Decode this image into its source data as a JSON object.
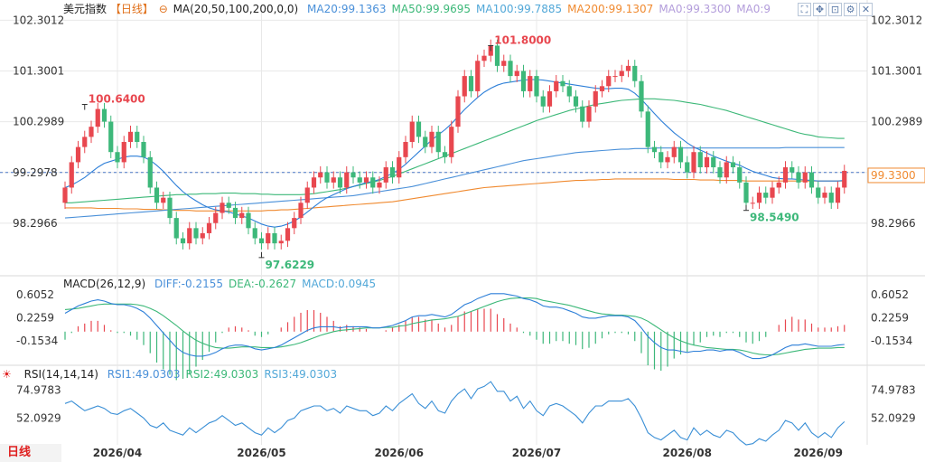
{
  "header": {
    "symbol": "美元指数",
    "period_label": "【日线】",
    "ma_label": "MA(20,50,100,200,0,0)",
    "ma_items": [
      {
        "text": "MA20:99.1363",
        "color": "#4a90d9"
      },
      {
        "text": "MA50:99.9695",
        "color": "#3cb878"
      },
      {
        "text": "MA100:99.7885",
        "color": "#52a8d8"
      },
      {
        "text": "MA200:99.1307",
        "color": "#f08a30"
      },
      {
        "text": "MA0:99.3300",
        "color": "#b39ddb"
      },
      {
        "text": "MA0:9",
        "color": "#b39ddb"
      }
    ],
    "toolbar_icons": [
      "fullscreen-icon",
      "move-icon",
      "zoom-icon",
      "settings-icon",
      "close-icon"
    ]
  },
  "macd_legend": {
    "label": "MACD(26,12,9)",
    "items": [
      {
        "text": "DIFF:-0.2155",
        "color": "#4a90d9"
      },
      {
        "text": "DEA:-0.2627",
        "color": "#3cb878"
      },
      {
        "text": "MACD:0.0945",
        "color": "#52a8d8"
      }
    ]
  },
  "rsi_legend": {
    "label": "RSI(14,14,14)",
    "items": [
      {
        "text": "RSI1:49.0303",
        "color": "#4a90d9"
      },
      {
        "text": "RSI2:49.0303",
        "color": "#3cb878"
      },
      {
        "text": "RSI3:49.0303",
        "color": "#52a8d8"
      }
    ]
  },
  "footer": {
    "period_tab": "日线"
  },
  "colors": {
    "up": "#e8474f",
    "down": "#3db87a",
    "grid": "#e8e8e8",
    "current": "#f08a30"
  },
  "chart_data": {
    "type": "candlestick",
    "price_axis": {
      "ticks": [
        102.3012,
        101.3001,
        100.2989,
        99.2978,
        98.2966
      ],
      "range": [
        97.35,
        102.45
      ]
    },
    "current_price": "99.3300",
    "current_price_partial": "99.2978",
    "x_labels": [
      "2026/04",
      "2026/05",
      "2026/06",
      "2026/07",
      "2026/08",
      "2026/09"
    ],
    "x_label_index": [
      8,
      30,
      51,
      72,
      95,
      115
    ],
    "annotations": [
      {
        "text": "100.6400",
        "index": 3,
        "price": 100.64,
        "type": "high"
      },
      {
        "text": "101.8000",
        "index": 65,
        "price": 101.8,
        "type": "high"
      },
      {
        "text": "97.6229",
        "index": 30,
        "price": 97.62,
        "type": "low"
      },
      {
        "text": "98.5490",
        "index": 104,
        "price": 98.55,
        "type": "low"
      }
    ],
    "closes": [
      99.0,
      99.5,
      99.8,
      100.0,
      100.2,
      100.55,
      100.3,
      99.7,
      99.5,
      99.9,
      100.1,
      99.9,
      99.6,
      99.0,
      98.7,
      98.8,
      98.4,
      98.0,
      97.9,
      98.2,
      98.0,
      98.1,
      98.3,
      98.5,
      98.7,
      98.6,
      98.4,
      98.5,
      98.2,
      98.0,
      97.9,
      98.1,
      97.9,
      97.95,
      98.2,
      98.4,
      98.7,
      99.0,
      99.2,
      99.3,
      99.1,
      99.2,
      99.0,
      99.3,
      99.2,
      99.1,
      99.2,
      99.0,
      99.1,
      99.4,
      99.2,
      99.6,
      99.9,
      100.3,
      100.0,
      99.8,
      100.1,
      99.7,
      99.6,
      100.2,
      100.8,
      101.2,
      100.9,
      101.5,
      101.6,
      101.8,
      101.4,
      101.5,
      101.2,
      101.3,
      100.9,
      101.2,
      100.8,
      100.6,
      100.9,
      101.1,
      101.0,
      100.8,
      100.6,
      100.3,
      100.6,
      100.9,
      101.0,
      101.2,
      101.2,
      101.3,
      101.4,
      101.1,
      100.5,
      99.8,
      99.7,
      99.5,
      99.6,
      99.8,
      99.5,
      99.3,
      99.7,
      99.4,
      99.6,
      99.4,
      99.2,
      99.5,
      99.4,
      99.1,
      98.7,
      98.7,
      98.9,
      98.8,
      99.0,
      99.1,
      99.4,
      99.3,
      99.1,
      99.3,
      99.0,
      98.8,
      98.9,
      98.7,
      99.0,
      99.33
    ],
    "ma20": [
      99.0,
      99.05,
      99.12,
      99.2,
      99.3,
      99.4,
      99.48,
      99.52,
      99.56,
      99.6,
      99.62,
      99.62,
      99.6,
      99.54,
      99.44,
      99.32,
      99.18,
      99.04,
      98.92,
      98.82,
      98.74,
      98.66,
      98.6,
      98.56,
      98.54,
      98.52,
      98.48,
      98.44,
      98.4,
      98.34,
      98.28,
      98.24,
      98.22,
      98.24,
      98.28,
      98.34,
      98.42,
      98.52,
      98.62,
      98.72,
      98.8,
      98.86,
      98.92,
      98.98,
      99.02,
      99.06,
      99.1,
      99.12,
      99.16,
      99.22,
      99.28,
      99.36,
      99.46,
      99.58,
      99.7,
      99.82,
      99.94,
      100.04,
      100.14,
      100.26,
      100.4,
      100.54,
      100.66,
      100.78,
      100.88,
      100.96,
      101.02,
      101.06,
      101.08,
      101.1,
      101.12,
      101.13,
      101.13,
      101.12,
      101.1,
      101.08,
      101.06,
      101.04,
      101.02,
      101.0,
      100.98,
      100.96,
      100.95,
      100.95,
      100.96,
      100.96,
      100.94,
      100.86,
      100.74,
      100.6,
      100.46,
      100.32,
      100.2,
      100.08,
      99.98,
      99.88,
      99.8,
      99.74,
      99.68,
      99.62,
      99.57,
      99.52,
      99.48,
      99.44,
      99.38,
      99.32,
      99.28,
      99.24,
      99.2,
      99.18,
      99.17,
      99.17,
      99.16,
      99.15,
      99.14,
      99.13,
      99.13,
      99.13,
      99.13,
      99.14
    ],
    "ma50": [
      98.7,
      98.7,
      98.71,
      98.72,
      98.73,
      98.74,
      98.75,
      98.76,
      98.77,
      98.78,
      98.79,
      98.8,
      98.81,
      98.82,
      98.83,
      98.84,
      98.85,
      98.86,
      98.86,
      98.87,
      98.87,
      98.88,
      98.88,
      98.88,
      98.89,
      98.89,
      98.89,
      98.88,
      98.88,
      98.88,
      98.87,
      98.87,
      98.86,
      98.86,
      98.86,
      98.86,
      98.86,
      98.87,
      98.88,
      98.9,
      98.92,
      98.94,
      98.96,
      98.99,
      99.02,
      99.05,
      99.08,
      99.11,
      99.14,
      99.18,
      99.22,
      99.27,
      99.32,
      99.37,
      99.42,
      99.47,
      99.52,
      99.57,
      99.62,
      99.67,
      99.72,
      99.77,
      99.82,
      99.87,
      99.92,
      99.97,
      100.02,
      100.07,
      100.12,
      100.17,
      100.22,
      100.27,
      100.32,
      100.36,
      100.4,
      100.44,
      100.48,
      100.52,
      100.55,
      100.58,
      100.61,
      100.64,
      100.66,
      100.68,
      100.7,
      100.72,
      100.73,
      100.74,
      100.75,
      100.75,
      100.75,
      100.74,
      100.73,
      100.72,
      100.7,
      100.68,
      100.66,
      100.64,
      100.61,
      100.58,
      100.55,
      100.52,
      100.48,
      100.44,
      100.4,
      100.36,
      100.32,
      100.28,
      100.24,
      100.2,
      100.16,
      100.12,
      100.08,
      100.05,
      100.03,
      100.0,
      99.99,
      99.98,
      99.97,
      99.97
    ],
    "ma100": [
      98.4,
      98.41,
      98.42,
      98.43,
      98.44,
      98.45,
      98.46,
      98.47,
      98.48,
      98.49,
      98.5,
      98.51,
      98.52,
      98.53,
      98.54,
      98.55,
      98.56,
      98.57,
      98.58,
      98.59,
      98.6,
      98.61,
      98.62,
      98.63,
      98.64,
      98.65,
      98.66,
      98.67,
      98.68,
      98.69,
      98.7,
      98.71,
      98.72,
      98.73,
      98.74,
      98.75,
      98.76,
      98.77,
      98.78,
      98.79,
      98.8,
      98.81,
      98.82,
      98.83,
      98.84,
      98.86,
      98.88,
      98.9,
      98.92,
      98.94,
      98.96,
      98.98,
      99.0,
      99.02,
      99.05,
      99.08,
      99.11,
      99.14,
      99.17,
      99.2,
      99.23,
      99.26,
      99.29,
      99.32,
      99.35,
      99.38,
      99.41,
      99.44,
      99.47,
      99.5,
      99.53,
      99.55,
      99.57,
      99.59,
      99.61,
      99.63,
      99.65,
      99.67,
      99.69,
      99.7,
      99.71,
      99.72,
      99.73,
      99.74,
      99.75,
      99.76,
      99.76,
      99.77,
      99.77,
      99.77,
      99.78,
      99.78,
      99.78,
      99.78,
      99.78,
      99.78,
      99.78,
      99.78,
      99.78,
      99.78,
      99.78,
      99.78,
      99.78,
      99.78,
      99.78,
      99.78,
      99.78,
      99.78,
      99.78,
      99.78,
      99.79,
      99.79,
      99.79,
      99.79,
      99.79,
      99.79,
      99.79,
      99.79,
      99.79,
      99.79
    ],
    "ma200": [
      98.6,
      98.6,
      98.6,
      98.6,
      98.6,
      98.59,
      98.59,
      98.59,
      98.59,
      98.58,
      98.58,
      98.58,
      98.57,
      98.57,
      98.57,
      98.56,
      98.56,
      98.55,
      98.55,
      98.55,
      98.54,
      98.54,
      98.54,
      98.54,
      98.54,
      98.54,
      98.54,
      98.54,
      98.54,
      98.54,
      98.54,
      98.55,
      98.55,
      98.56,
      98.56,
      98.57,
      98.58,
      98.59,
      98.6,
      98.61,
      98.62,
      98.63,
      98.64,
      98.65,
      98.66,
      98.67,
      98.68,
      98.69,
      98.7,
      98.71,
      98.72,
      98.74,
      98.76,
      98.78,
      98.8,
      98.82,
      98.84,
      98.86,
      98.88,
      98.9,
      98.92,
      98.94,
      98.96,
      98.98,
      99.0,
      99.01,
      99.02,
      99.03,
      99.04,
      99.05,
      99.06,
      99.07,
      99.08,
      99.09,
      99.1,
      99.11,
      99.12,
      99.13,
      99.14,
      99.14,
      99.15,
      99.15,
      99.16,
      99.16,
      99.17,
      99.17,
      99.17,
      99.17,
      99.17,
      99.17,
      99.17,
      99.17,
      99.17,
      99.16,
      99.16,
      99.16,
      99.16,
      99.15,
      99.15,
      99.15,
      99.14,
      99.14,
      99.14,
      99.14,
      99.13,
      99.13,
      99.13,
      99.13,
      99.13,
      99.13,
      99.13,
      99.13,
      99.13,
      99.13,
      99.13,
      99.13,
      99.13,
      99.13,
      99.13,
      99.13
    ],
    "macd_panel": {
      "ticks": [
        0.6052,
        0.2259,
        -0.1534
      ],
      "range": [
        -0.52,
        0.78
      ],
      "diff": [
        0.3,
        0.36,
        0.42,
        0.46,
        0.5,
        0.52,
        0.5,
        0.46,
        0.44,
        0.44,
        0.42,
        0.38,
        0.32,
        0.22,
        0.1,
        -0.02,
        -0.14,
        -0.26,
        -0.34,
        -0.38,
        -0.4,
        -0.4,
        -0.38,
        -0.34,
        -0.28,
        -0.24,
        -0.22,
        -0.22,
        -0.24,
        -0.28,
        -0.3,
        -0.28,
        -0.26,
        -0.22,
        -0.16,
        -0.1,
        -0.04,
        0.02,
        0.06,
        0.08,
        0.08,
        0.08,
        0.06,
        0.08,
        0.08,
        0.08,
        0.08,
        0.06,
        0.06,
        0.08,
        0.1,
        0.14,
        0.18,
        0.24,
        0.26,
        0.26,
        0.28,
        0.26,
        0.24,
        0.28,
        0.36,
        0.44,
        0.48,
        0.54,
        0.58,
        0.62,
        0.62,
        0.62,
        0.6,
        0.58,
        0.54,
        0.52,
        0.48,
        0.42,
        0.4,
        0.4,
        0.38,
        0.34,
        0.3,
        0.24,
        0.22,
        0.22,
        0.24,
        0.26,
        0.26,
        0.26,
        0.24,
        0.18,
        0.06,
        -0.08,
        -0.18,
        -0.26,
        -0.3,
        -0.3,
        -0.32,
        -0.34,
        -0.32,
        -0.32,
        -0.3,
        -0.3,
        -0.32,
        -0.3,
        -0.3,
        -0.34,
        -0.4,
        -0.44,
        -0.44,
        -0.42,
        -0.38,
        -0.32,
        -0.26,
        -0.22,
        -0.22,
        -0.2,
        -0.22,
        -0.24,
        -0.24,
        -0.24,
        -0.22,
        -0.21
      ],
      "dea": [
        0.36,
        0.37,
        0.38,
        0.4,
        0.42,
        0.44,
        0.45,
        0.45,
        0.45,
        0.45,
        0.45,
        0.44,
        0.42,
        0.38,
        0.33,
        0.26,
        0.18,
        0.1,
        0.01,
        -0.07,
        -0.14,
        -0.19,
        -0.23,
        -0.26,
        -0.27,
        -0.27,
        -0.26,
        -0.25,
        -0.25,
        -0.25,
        -0.26,
        -0.26,
        -0.26,
        -0.25,
        -0.23,
        -0.21,
        -0.18,
        -0.14,
        -0.1,
        -0.06,
        -0.03,
        0.0,
        0.02,
        0.03,
        0.04,
        0.05,
        0.06,
        0.06,
        0.06,
        0.07,
        0.07,
        0.09,
        0.1,
        0.13,
        0.15,
        0.17,
        0.19,
        0.2,
        0.21,
        0.23,
        0.25,
        0.29,
        0.33,
        0.37,
        0.41,
        0.45,
        0.49,
        0.52,
        0.54,
        0.55,
        0.55,
        0.55,
        0.54,
        0.51,
        0.49,
        0.47,
        0.45,
        0.43,
        0.4,
        0.37,
        0.34,
        0.31,
        0.29,
        0.28,
        0.27,
        0.27,
        0.26,
        0.25,
        0.22,
        0.17,
        0.1,
        0.03,
        -0.04,
        -0.1,
        -0.15,
        -0.19,
        -0.22,
        -0.24,
        -0.26,
        -0.27,
        -0.28,
        -0.29,
        -0.29,
        -0.3,
        -0.32,
        -0.35,
        -0.37,
        -0.38,
        -0.38,
        -0.37,
        -0.35,
        -0.33,
        -0.31,
        -0.29,
        -0.28,
        -0.27,
        -0.27,
        -0.27,
        -0.26,
        -0.26
      ]
    },
    "rsi_panel": {
      "ticks": [
        74.9783,
        52.0929
      ],
      "range": [
        30,
        88
      ],
      "rsi": [
        64,
        66,
        62,
        58,
        60,
        62,
        60,
        56,
        55,
        58,
        60,
        56,
        52,
        46,
        44,
        48,
        42,
        40,
        38,
        44,
        40,
        44,
        48,
        50,
        54,
        50,
        46,
        48,
        44,
        40,
        38,
        44,
        40,
        44,
        50,
        52,
        58,
        60,
        62,
        62,
        58,
        60,
        56,
        62,
        60,
        58,
        58,
        54,
        56,
        62,
        58,
        64,
        68,
        72,
        64,
        60,
        66,
        58,
        56,
        66,
        72,
        76,
        68,
        76,
        78,
        82,
        74,
        74,
        66,
        70,
        60,
        66,
        58,
        54,
        62,
        64,
        62,
        58,
        54,
        48,
        56,
        62,
        62,
        66,
        66,
        66,
        68,
        62,
        52,
        40,
        36,
        34,
        38,
        42,
        36,
        34,
        44,
        38,
        42,
        38,
        36,
        42,
        40,
        34,
        30,
        31,
        35,
        33,
        38,
        42,
        50,
        48,
        42,
        48,
        40,
        36,
        40,
        36,
        44,
        49
      ]
    }
  }
}
